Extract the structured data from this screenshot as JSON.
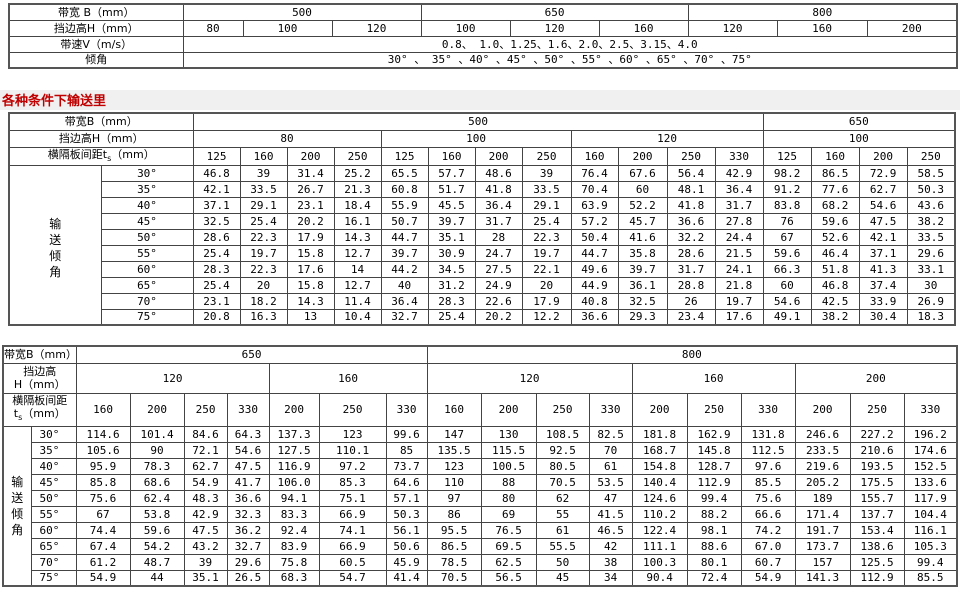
{
  "spec_table": {
    "belt_width_label": "带宽 B（mm）",
    "belt_widths": [
      {
        "label": "500",
        "span": 3
      },
      {
        "label": "650",
        "span": 3
      },
      {
        "label": "800",
        "span": 3
      }
    ],
    "sidewall_label": "挡边高H（mm）",
    "sidewall_heights": [
      "80",
      "100",
      "120",
      "100",
      "120",
      "160",
      "120",
      "160",
      "200"
    ],
    "speed_label": "带速V（m/s）",
    "speeds": "0.8、 1.0、1.25、1.6、2.0、2.5、3.15、4.0",
    "angle_label": "倾角",
    "angles": "30° 、 35° 、40° 、45° 、50° 、55° 、60° 、65° 、70° 、75°"
  },
  "section_heading": "各种条件下输送里",
  "capacity_table_1": {
    "belt_width_label": "带宽B（mm）",
    "belt_widths": [
      {
        "label": "500",
        "span": 12
      },
      {
        "label": "650",
        "span": 4
      }
    ],
    "sidewall_label": "挡边高H（mm）",
    "sidewall_heights": [
      {
        "label": "80",
        "span": 4
      },
      {
        "label": "100",
        "span": 4
      },
      {
        "label": "120",
        "span": 4
      },
      {
        "label": "100",
        "span": 4
      }
    ],
    "spacing_label": "横隔板间距t",
    "spacing_sub": "s",
    "spacing_unit": "（mm）",
    "spacings": [
      "125",
      "160",
      "200",
      "250",
      "125",
      "160",
      "200",
      "250",
      "160",
      "200",
      "250",
      "330",
      "125",
      "160",
      "200",
      "250"
    ],
    "side_label": "输送倾角",
    "rows": [
      {
        "angle": "30°",
        "values": [
          "46.8",
          "39",
          "31.4",
          "25.2",
          "65.5",
          "57.7",
          "48.6",
          "39",
          "76.4",
          "67.6",
          "56.4",
          "42.9",
          "98.2",
          "86.5",
          "72.9",
          "58.5"
        ]
      },
      {
        "angle": "35°",
        "values": [
          "42.1",
          "33.5",
          "26.7",
          "21.3",
          "60.8",
          "51.7",
          "41.8",
          "33.5",
          "70.4",
          "60",
          "48.1",
          "36.4",
          "91.2",
          "77.6",
          "62.7",
          "50.3"
        ]
      },
      {
        "angle": "40°",
        "values": [
          "37.1",
          "29.1",
          "23.1",
          "18.4",
          "55.9",
          "45.5",
          "36.4",
          "29.1",
          "63.9",
          "52.2",
          "41.8",
          "31.7",
          "83.8",
          "68.2",
          "54.6",
          "43.6"
        ]
      },
      {
        "angle": "45°",
        "values": [
          "32.5",
          "25.4",
          "20.2",
          "16.1",
          "50.7",
          "39.7",
          "31.7",
          "25.4",
          "57.2",
          "45.7",
          "36.6",
          "27.8",
          "76",
          "59.6",
          "47.5",
          "38.2"
        ]
      },
      {
        "angle": "50°",
        "values": [
          "28.6",
          "22.3",
          "17.9",
          "14.3",
          "44.7",
          "35.1",
          "28",
          "22.3",
          "50.4",
          "41.6",
          "32.2",
          "24.4",
          "67",
          "52.6",
          "42.1",
          "33.5"
        ]
      },
      {
        "angle": "55°",
        "values": [
          "25.4",
          "19.7",
          "15.8",
          "12.7",
          "39.7",
          "30.9",
          "24.7",
          "19.7",
          "44.7",
          "35.8",
          "28.6",
          "21.5",
          "59.6",
          "46.4",
          "37.1",
          "29.6"
        ]
      },
      {
        "angle": "60°",
        "values": [
          "28.3",
          "22.3",
          "17.6",
          "14",
          "44.2",
          "34.5",
          "27.5",
          "22.1",
          "49.6",
          "39.7",
          "31.7",
          "24.1",
          "66.3",
          "51.8",
          "41.3",
          "33.1"
        ]
      },
      {
        "angle": "65°",
        "values": [
          "25.4",
          "20",
          "15.8",
          "12.7",
          "40",
          "31.2",
          "24.9",
          "20",
          "44.9",
          "36.1",
          "28.8",
          "21.8",
          "60",
          "46.8",
          "37.4",
          "30"
        ]
      },
      {
        "angle": "70°",
        "values": [
          "23.1",
          "18.2",
          "14.3",
          "11.4",
          "36.4",
          "28.3",
          "22.6",
          "17.9",
          "40.8",
          "32.5",
          "26",
          "19.7",
          "54.6",
          "42.5",
          "33.9",
          "26.9"
        ]
      },
      {
        "angle": "75°",
        "values": [
          "20.8",
          "16.3",
          "13",
          "10.4",
          "32.7",
          "25.4",
          "20.2",
          "12.2",
          "36.6",
          "29.3",
          "23.4",
          "17.6",
          "49.1",
          "38.2",
          "30.4",
          "18.3"
        ]
      }
    ]
  },
  "capacity_table_2": {
    "belt_width_label": "带宽B（mm）",
    "belt_widths": [
      {
        "label": "650",
        "span": 7
      },
      {
        "label": "800",
        "span": 10
      }
    ],
    "sidewall_label_1": "挡边高",
    "sidewall_label_2": "H（mm）",
    "sidewall_heights": [
      {
        "label": "120",
        "span": 4
      },
      {
        "label": "160",
        "span": 3
      },
      {
        "label": "120",
        "span": 4
      },
      {
        "label": "160",
        "span": 3
      },
      {
        "label": "200",
        "span": 3
      }
    ],
    "spacing_label_1": "横隔板间距",
    "spacing_label_2": "t",
    "spacing_sub": "s",
    "spacing_unit": "（mm）",
    "spacings": [
      "160",
      "200",
      "250",
      "330",
      "200",
      "250",
      "330",
      "160",
      "200",
      "250",
      "330",
      "200",
      "250",
      "330",
      "200",
      "250",
      "330"
    ],
    "side_label": "输送倾角",
    "rows": [
      {
        "angle": "30°",
        "values": [
          "114.6",
          "101.4",
          "84.6",
          "64.3",
          "137.3",
          "123",
          "99.6",
          "147",
          "130",
          "108.5",
          "82.5",
          "181.8",
          "162.9",
          "131.8",
          "246.6",
          "227.2",
          "196.2"
        ]
      },
      {
        "angle": "35°",
        "values": [
          "105.6",
          "90",
          "72.1",
          "54.6",
          "127.5",
          "110.1",
          "85",
          "135.5",
          "115.5",
          "92.5",
          "70",
          "168.7",
          "145.8",
          "112.5",
          "233.5",
          "210.6",
          "174.6"
        ]
      },
      {
        "angle": "40°",
        "values": [
          "95.9",
          "78.3",
          "62.7",
          "47.5",
          "116.9",
          "97.2",
          "73.7",
          "123",
          "100.5",
          "80.5",
          "61",
          "154.8",
          "128.7",
          "97.6",
          "219.6",
          "193.5",
          "152.5"
        ]
      },
      {
        "angle": "45°",
        "values": [
          "85.8",
          "68.6",
          "54.9",
          "41.7",
          "106.0",
          "85.3",
          "64.6",
          "110",
          "88",
          "70.5",
          "53.5",
          "140.4",
          "112.9",
          "85.5",
          "205.2",
          "175.5",
          "133.6"
        ]
      },
      {
        "angle": "50°",
        "values": [
          "75.6",
          "62.4",
          "48.3",
          "36.6",
          "94.1",
          "75.1",
          "57.1",
          "97",
          "80",
          "62",
          "47",
          "124.6",
          "99.4",
          "75.6",
          "189",
          "155.7",
          "117.9"
        ]
      },
      {
        "angle": "55°",
        "values": [
          "67",
          "53.8",
          "42.9",
          "32.3",
          "83.3",
          "66.9",
          "50.3",
          "86",
          "69",
          "55",
          "41.5",
          "110.2",
          "88.2",
          "66.6",
          "171.4",
          "137.7",
          "104.4"
        ]
      },
      {
        "angle": "60°",
        "values": [
          "74.4",
          "59.6",
          "47.5",
          "36.2",
          "92.4",
          "74.1",
          "56.1",
          "95.5",
          "76.5",
          "61",
          "46.5",
          "122.4",
          "98.1",
          "74.2",
          "191.7",
          "153.4",
          "116.1"
        ]
      },
      {
        "angle": "65°",
        "values": [
          "67.4",
          "54.2",
          "43.2",
          "32.7",
          "83.9",
          "66.9",
          "50.6",
          "86.5",
          "69.5",
          "55.5",
          "42",
          "111.1",
          "88.6",
          "67.0",
          "173.7",
          "138.6",
          "105.3"
        ]
      },
      {
        "angle": "70°",
        "values": [
          "61.2",
          "48.7",
          "39",
          "29.6",
          "75.8",
          "60.5",
          "45.9",
          "78.5",
          "62.5",
          "50",
          "38",
          "100.3",
          "80.1",
          "60.7",
          "157",
          "125.5",
          "99.4"
        ]
      },
      {
        "angle": "75°",
        "values": [
          "54.9",
          "44",
          "35.1",
          "26.5",
          "68.3",
          "54.7",
          "41.4",
          "70.5",
          "56.5",
          "45",
          "34",
          "90.4",
          "72.4",
          "54.9",
          "141.3",
          "112.9",
          "85.5"
        ]
      }
    ]
  },
  "colors": {
    "heading_text": "#c00000",
    "heading_bg": "#f0f0f0",
    "border": "#444444"
  }
}
